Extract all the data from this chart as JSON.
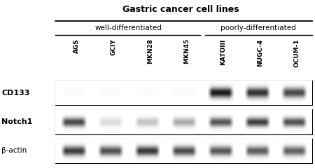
{
  "title": "Gastric cancer cell lines",
  "group1_label": "well-differentiated",
  "group2_label": "poorly-differentiated",
  "cell_lines": [
    "AGS",
    "GCIY",
    "MKN28",
    "MKN45",
    "KATOIII",
    "NUGC-4",
    "OCUM-1"
  ],
  "row_labels": [
    "CD133",
    "Notch1",
    "β-actin"
  ],
  "background": "#ffffff",
  "fig_width": 4.5,
  "fig_height": 2.4,
  "dpi": 100,
  "n_lanes": 7,
  "cd133_intensities": [
    0.02,
    0.02,
    0.02,
    0.02,
    0.95,
    0.85,
    0.75
  ],
  "notch1_intensities": [
    0.75,
    0.15,
    0.25,
    0.35,
    0.7,
    0.8,
    0.72
  ],
  "bactin_intensities": [
    0.8,
    0.72,
    0.82,
    0.75,
    0.7,
    0.68,
    0.65
  ],
  "title_fontsize": 9,
  "group_fontsize": 7.5,
  "cell_fontsize": 6.5,
  "row_label_fontsize": 8,
  "row_label_fontsize_beta": 7.5
}
